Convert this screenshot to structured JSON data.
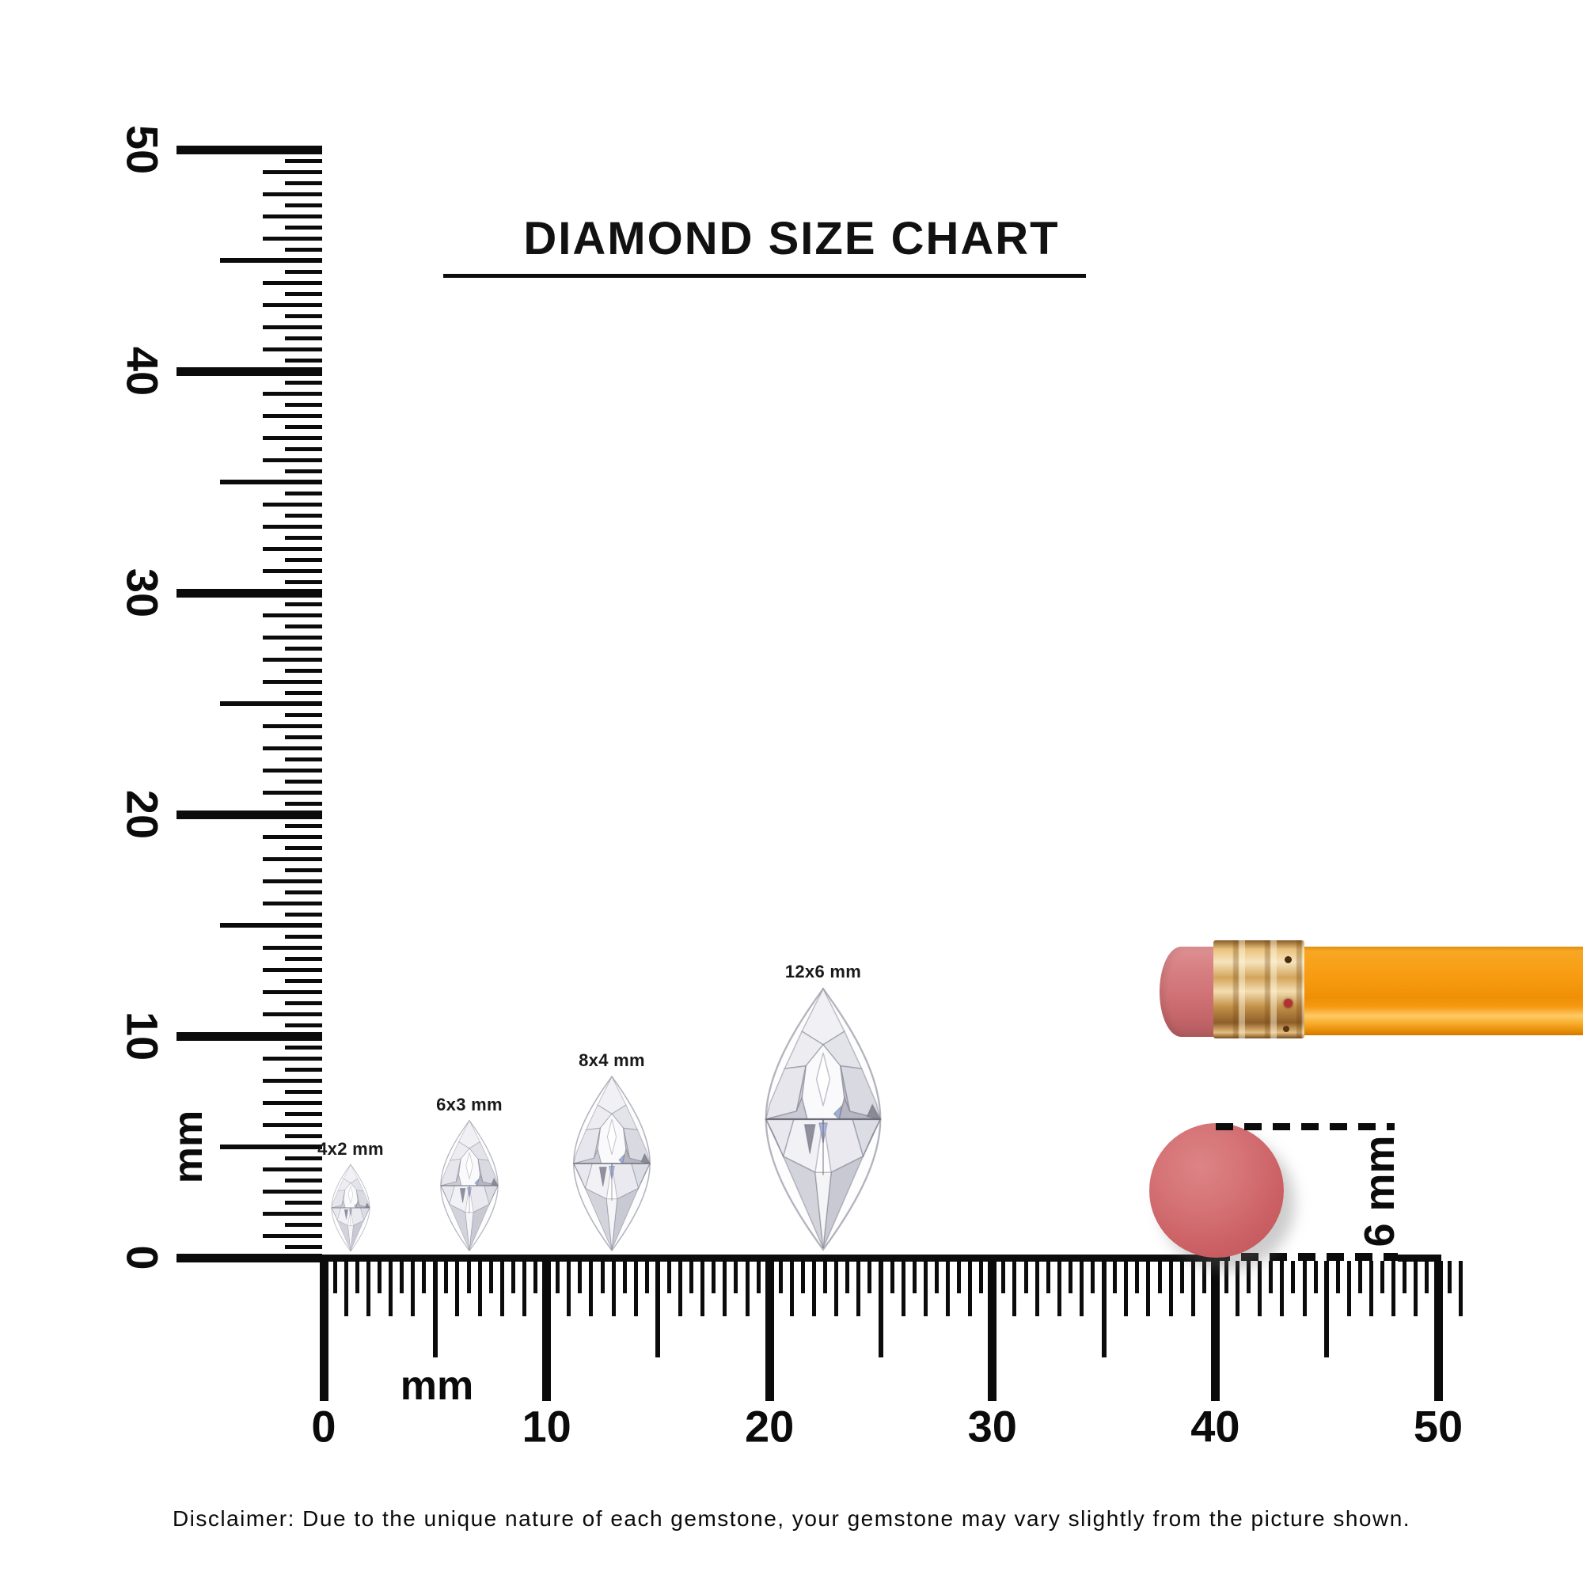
{
  "title": "DIAMOND SIZE CHART",
  "rulers": {
    "vertical": {
      "unit_label": "mm",
      "numbers": [
        "0",
        "10",
        "20",
        "30",
        "40",
        "50"
      ],
      "range_mm": 50,
      "tick_step_mm": 0.5
    },
    "horizontal": {
      "unit_label": "mm",
      "numbers": [
        "0",
        "10",
        "20",
        "30",
        "40",
        "50"
      ],
      "range_mm": 50,
      "tick_step_mm": 0.5
    }
  },
  "diamonds": [
    {
      "label": "4x2 mm",
      "width_mm": 2,
      "length_mm": 4
    },
    {
      "label": "6x3 mm",
      "width_mm": 3,
      "length_mm": 6
    },
    {
      "label": "8x4 mm",
      "width_mm": 4,
      "length_mm": 8
    },
    {
      "label": "12x6 mm",
      "width_mm": 6,
      "length_mm": 12
    }
  ],
  "pencil": {
    "eraser_color": "#cf7276",
    "ferrule_color": "#d8ae6d",
    "body_color": "#f79b10"
  },
  "eraser_measure": {
    "label": "6 mm",
    "diameter_mm": 6,
    "circle_color": "#cb6165"
  },
  "disclaimer": "Disclaimer: Due to the unique nature of each gemstone, your gemstone may vary slightly from the picture shown."
}
